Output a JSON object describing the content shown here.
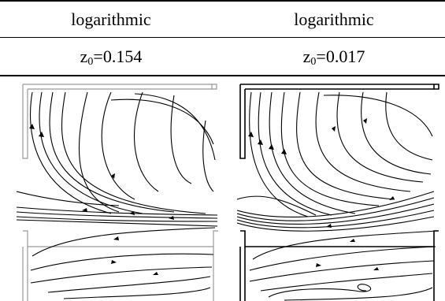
{
  "table": {
    "header": [
      "logarithmic",
      "logarithmic"
    ],
    "params": [
      {
        "var": "z",
        "sub": "0",
        "value": "=0.154"
      },
      {
        "var": "z",
        "sub": "0",
        "value": "=0.017"
      }
    ]
  },
  "panels": [
    "left-streamline-plot",
    "right-streamline-plot"
  ]
}
